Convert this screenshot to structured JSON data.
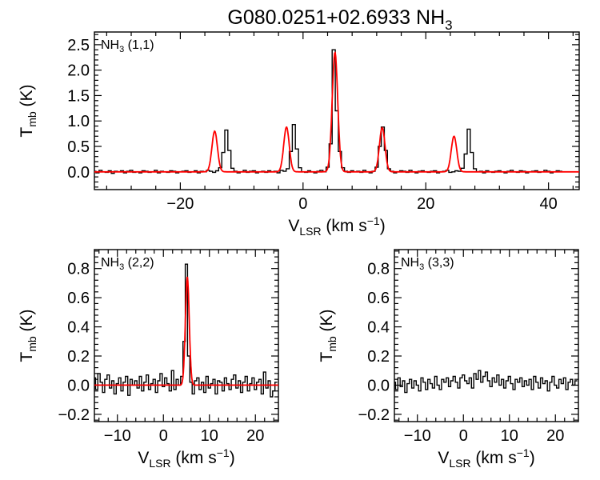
{
  "title_main": "G080.0251+02.6933 NH",
  "title_sub": "3",
  "colors": {
    "observed": "#000000",
    "fit": "#ff0000"
  },
  "chart_data": [
    {
      "id": "nh3_11",
      "type": "line",
      "label_main": "NH",
      "label_sub": "3",
      "label_tail": " (1,1)",
      "xlabel_main": "V",
      "xlabel_sub": "LSR",
      "xlabel_tail": " (km s",
      "xlabel_sup": "−1",
      "xlabel_end": ")",
      "ylabel_main": "T",
      "ylabel_sub": "mb",
      "ylabel_tail": " (K)",
      "xlim": [
        -34,
        45
      ],
      "ylim": [
        -0.35,
        2.75
      ],
      "xticks": [
        -20,
        0,
        20,
        40
      ],
      "xtick_labels": [
        "−20",
        "0",
        "20",
        "40"
      ],
      "yticks": [
        0.0,
        0.5,
        1.0,
        1.5,
        2.0,
        2.5
      ],
      "ytick_labels": [
        "0.0",
        "0.5",
        "1.0",
        "1.5",
        "2.0",
        "2.5"
      ],
      "fit_components": [
        {
          "center": -14.4,
          "amplitude": 0.8,
          "sigma": 0.45
        },
        {
          "center": -2.7,
          "amplitude": 0.88,
          "sigma": 0.45
        },
        {
          "center": 5.2,
          "amplitude": 2.35,
          "sigma": 0.45
        },
        {
          "center": 12.9,
          "amplitude": 0.87,
          "sigma": 0.45
        },
        {
          "center": 24.6,
          "amplitude": 0.7,
          "sigma": 0.45
        }
      ],
      "observed": {
        "x_start": -34,
        "dx": 0.5,
        "values": [
          0.01,
          -0.02,
          0.03,
          0.0,
          -0.01,
          0.02,
          -0.03,
          0.01,
          0.0,
          0.02,
          -0.02,
          0.01,
          0.03,
          -0.01,
          0.0,
          -0.02,
          0.02,
          0.01,
          -0.01,
          0.0,
          0.03,
          -0.02,
          0.01,
          0.0,
          -0.01,
          0.02,
          0.01,
          -0.02,
          0.0,
          0.01,
          0.02,
          -0.01,
          0.0,
          0.02,
          -0.02,
          0.01,
          0.0,
          0.03,
          0.01,
          -0.01,
          0.02,
          0.08,
          0.38,
          0.82,
          0.42,
          0.07,
          0.01,
          -0.02,
          0.0,
          0.03,
          -0.01,
          0.01,
          0.02,
          -0.02,
          0.0,
          0.01,
          -0.01,
          0.02,
          0.0,
          0.01,
          -0.02,
          0.03,
          0.01,
          0.06,
          0.4,
          0.93,
          0.45,
          0.08,
          0.0,
          -0.01,
          0.02,
          0.0,
          -0.02,
          0.01,
          0.03,
          0.0,
          0.09,
          0.55,
          2.4,
          1.2,
          0.4,
          0.08,
          0.01,
          -0.01,
          0.02,
          0.0,
          0.01,
          -0.01,
          0.03,
          0.0,
          -0.02,
          0.01,
          0.09,
          0.5,
          0.88,
          0.42,
          0.06,
          0.01,
          -0.02,
          0.0,
          0.02,
          0.01,
          -0.01,
          0.03,
          0.0,
          -0.02,
          0.01,
          0.02,
          0.0,
          -0.01,
          0.01,
          0.02,
          -0.02,
          0.0,
          0.01,
          0.03,
          -0.01,
          0.0,
          0.02,
          0.01,
          0.07,
          0.35,
          0.84,
          0.38,
          0.06,
          0.0,
          0.01,
          -0.02,
          0.02,
          0.0,
          -0.01,
          0.01,
          0.02,
          0.0,
          -0.02,
          0.01,
          0.03,
          0.0,
          -0.01,
          0.02,
          0.01,
          -0.02,
          0.0,
          0.01,
          0.02,
          -0.01,
          0.0,
          0.03,
          0.01,
          -0.02,
          0.0,
          0.02,
          0.01
        ]
      }
    },
    {
      "id": "nh3_22",
      "type": "line",
      "label_main": "NH",
      "label_sub": "3",
      "label_tail": " (2,2)",
      "xlabel_main": "V",
      "xlabel_sub": "LSR",
      "xlabel_tail": " (km s",
      "xlabel_sup": "−1",
      "xlabel_end": ")",
      "ylabel_main": "T",
      "ylabel_sub": "mb",
      "ylabel_tail": " (K)",
      "xlim": [
        -15,
        25
      ],
      "ylim": [
        -0.25,
        0.93
      ],
      "xticks": [
        -10,
        0,
        10,
        20
      ],
      "xtick_labels": [
        "−10",
        "0",
        "10",
        "20"
      ],
      "yticks": [
        -0.2,
        0.0,
        0.2,
        0.4,
        0.6,
        0.8
      ],
      "ytick_labels": [
        "−0.2",
        "0.0",
        "0.2",
        "0.4",
        "0.6",
        "0.8"
      ],
      "fit_components": [
        {
          "center": 5.2,
          "amplitude": 0.74,
          "sigma": 0.42
        }
      ],
      "observed": {
        "x_start": -15,
        "dx": 0.5,
        "values": [
          0.05,
          -0.03,
          0.08,
          0.02,
          -0.05,
          0.04,
          0.07,
          -0.02,
          0.03,
          -0.06,
          0.01,
          0.05,
          -0.04,
          0.02,
          0.06,
          -0.07,
          0.04,
          0.0,
          0.03,
          -0.02,
          0.06,
          -0.04,
          0.02,
          0.07,
          -0.03,
          0.01,
          0.04,
          -0.05,
          0.03,
          0.08,
          -0.01,
          0.05,
          0.01,
          -0.04,
          0.1,
          -0.03,
          0.04,
          0.0,
          0.06,
          0.3,
          0.83,
          0.2,
          0.02,
          -0.06,
          0.03,
          0.05,
          -0.03,
          0.02,
          -0.05,
          0.06,
          -0.02,
          0.01,
          0.04,
          -0.06,
          0.03,
          0.02,
          -0.04,
          0.05,
          0.01,
          -0.03,
          0.04,
          0.07,
          -0.02,
          0.03,
          -0.05,
          0.02,
          0.06,
          -0.04,
          0.01,
          0.05,
          -0.03,
          0.02,
          0.04,
          -0.06,
          0.09,
          -0.02,
          0.03,
          -0.08,
          -0.04,
          0.02
        ]
      }
    },
    {
      "id": "nh3_33",
      "type": "line",
      "label_main": "NH",
      "label_sub": "3",
      "label_tail": " (3,3)",
      "xlabel_main": "V",
      "xlabel_sub": "LSR",
      "xlabel_tail": " (km s",
      "xlabel_sup": "−1",
      "xlabel_end": ")",
      "ylabel_main": "T",
      "ylabel_sub": "mb",
      "ylabel_tail": " (K)",
      "xlim": [
        -15,
        25
      ],
      "ylim": [
        -0.25,
        0.93
      ],
      "xticks": [
        -10,
        0,
        10,
        20
      ],
      "xtick_labels": [
        "−10",
        "0",
        "10",
        "20"
      ],
      "yticks": [
        -0.2,
        0.0,
        0.2,
        0.4,
        0.6,
        0.8
      ],
      "ytick_labels": [
        "−0.2",
        "0.0",
        "0.2",
        "0.4",
        "0.6",
        "0.8"
      ],
      "fit_components": [],
      "observed": {
        "x_start": -15,
        "dx": 0.5,
        "values": [
          0.02,
          -0.03,
          0.05,
          -0.01,
          0.03,
          -0.05,
          0.01,
          0.04,
          -0.02,
          0.03,
          0.0,
          -0.04,
          0.05,
          0.02,
          -0.03,
          0.04,
          0.01,
          -0.02,
          0.06,
          0.0,
          -0.03,
          0.04,
          0.02,
          0.05,
          -0.01,
          0.03,
          0.06,
          0.02,
          -0.02,
          0.05,
          0.07,
          0.03,
          0.01,
          0.05,
          -0.02,
          0.08,
          0.04,
          0.1,
          0.02,
          0.06,
          0.09,
          0.03,
          -0.01,
          0.05,
          0.02,
          0.07,
          0.0,
          0.04,
          -0.02,
          0.03,
          0.06,
          0.01,
          -0.03,
          0.04,
          0.02,
          0.05,
          -0.01,
          0.03,
          0.0,
          0.04,
          -0.03,
          0.06,
          0.02,
          -0.02,
          0.05,
          0.01,
          0.03,
          -0.04,
          0.02,
          0.06,
          0.0,
          -0.02,
          0.04,
          0.01,
          0.05,
          -0.03,
          0.02,
          0.04,
          0.0,
          0.03
        ]
      }
    }
  ]
}
